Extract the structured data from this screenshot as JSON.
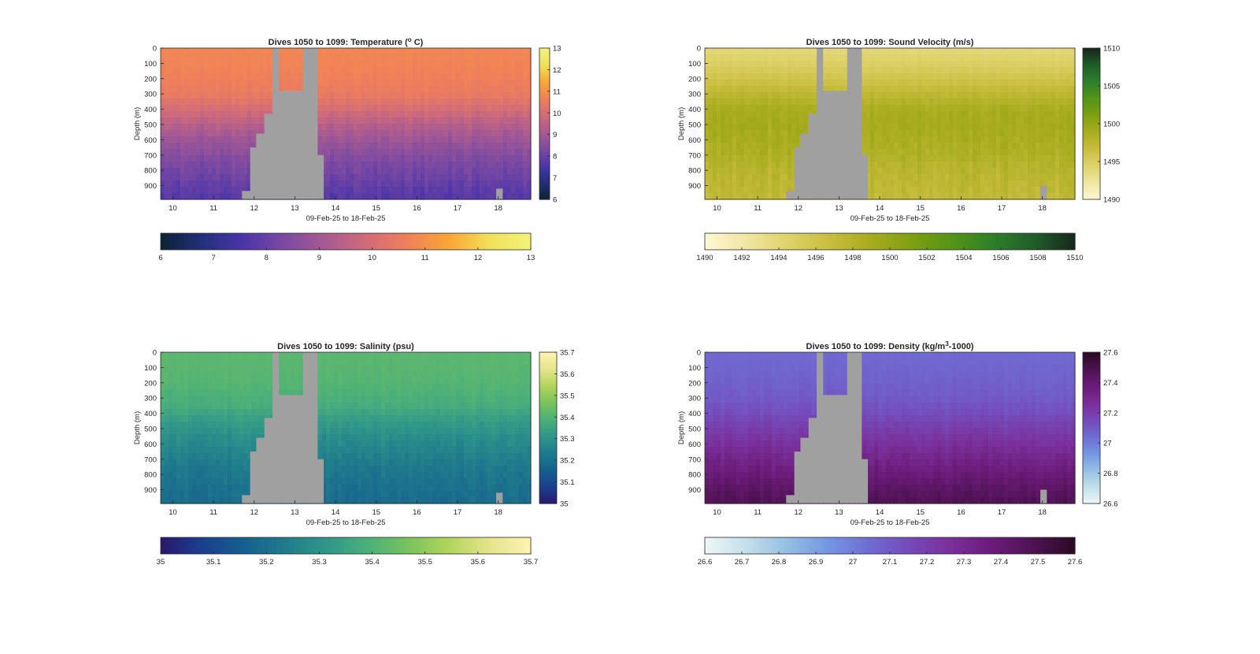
{
  "figure": {
    "background": "#ffffff",
    "mask_color": "#a0a0a0",
    "panel_border": "#262626"
  },
  "chart_data": [
    {
      "id": "temperature",
      "type": "heatmap",
      "title": "Dives 1050 to 1099: Temperature (",
      "title_sup": "o",
      "title_tail": " C)",
      "xlabel": "09-Feb-25 to 18-Feb-25",
      "ylabel": "Depth (m)",
      "x_ticks": [
        "10",
        "11",
        "12",
        "13",
        "14",
        "15",
        "16",
        "17",
        "18"
      ],
      "x_tick_values": [
        10,
        11,
        12,
        13,
        14,
        15,
        16,
        17,
        18
      ],
      "xlim": [
        9.7,
        18.8
      ],
      "y_ticks": [
        "0",
        "100",
        "200",
        "300",
        "400",
        "500",
        "600",
        "700",
        "800",
        "900"
      ],
      "y_tick_values": [
        0,
        100,
        200,
        300,
        400,
        500,
        600,
        700,
        800,
        900
      ],
      "ylim": [
        0,
        990
      ],
      "y_reversed": true,
      "colormap": [
        "#0d2233",
        "#22307a",
        "#4b35a8",
        "#7c4aa2",
        "#a75a92",
        "#d06b7a",
        "#ef805a",
        "#f9a636",
        "#f1e05a",
        "#f2f37c"
      ],
      "clim": [
        6,
        13
      ],
      "profile": [
        [
          0,
          10.8
        ],
        [
          150,
          10.7
        ],
        [
          300,
          10.5
        ],
        [
          400,
          10.0
        ],
        [
          500,
          9.4
        ],
        [
          600,
          8.9
        ],
        [
          700,
          8.5
        ],
        [
          800,
          8.2
        ],
        [
          900,
          7.9
        ],
        [
          990,
          7.7
        ]
      ],
      "vertical_colorbar_ticks": [
        "6",
        "7",
        "8",
        "9",
        "10",
        "11",
        "12",
        "13"
      ],
      "horizontal_colorbar_ticks": [
        "6",
        "7",
        "8",
        "9",
        "10",
        "11",
        "12",
        "13"
      ],
      "gaps": [
        {
          "start": 11.7,
          "end": 11.9,
          "top": 935
        },
        {
          "start": 11.9,
          "end": 12.05,
          "top": 650
        },
        {
          "start": 12.05,
          "end": 12.25,
          "top": 560
        },
        {
          "start": 12.25,
          "end": 12.45,
          "top": 430
        },
        {
          "start": 12.45,
          "end": 12.6,
          "top": 0
        },
        {
          "start": 12.6,
          "end": 12.85,
          "top": 280
        },
        {
          "start": 12.85,
          "end": 13.05,
          "top": 280
        },
        {
          "start": 13.05,
          "end": 13.2,
          "top": 280
        },
        {
          "start": 13.2,
          "end": 13.55,
          "top": 0
        },
        {
          "start": 13.55,
          "end": 13.7,
          "top": 700
        },
        {
          "start": 17.95,
          "end": 18.1,
          "top": 920
        }
      ]
    },
    {
      "id": "sound-velocity",
      "type": "heatmap",
      "title": "Dives 1050 to 1099: Sound Velocity (m/s)",
      "xlabel": "09-Feb-25 to 18-Feb-25",
      "ylabel": "Depth (m)",
      "x_ticks": [
        "10",
        "11",
        "12",
        "13",
        "14",
        "15",
        "16",
        "17",
        "18"
      ],
      "x_tick_values": [
        10,
        11,
        12,
        13,
        14,
        15,
        16,
        17,
        18
      ],
      "xlim": [
        9.7,
        18.8
      ],
      "y_ticks": [
        "0",
        "100",
        "200",
        "300",
        "400",
        "500",
        "600",
        "700",
        "800",
        "900"
      ],
      "y_tick_values": [
        0,
        100,
        200,
        300,
        400,
        500,
        600,
        700,
        800,
        900
      ],
      "ylim": [
        0,
        990
      ],
      "y_reversed": true,
      "colormap": [
        "#fdf7d4",
        "#f0e6a4",
        "#dfd26c",
        "#c9be3f",
        "#a8ac1e",
        "#80a012",
        "#559418",
        "#2f7f2a",
        "#1f5f2a",
        "#17261b"
      ],
      "clim": [
        1490,
        1510
      ],
      "profile": [
        [
          0,
          1493.8
        ],
        [
          100,
          1494.8
        ],
        [
          200,
          1496.0
        ],
        [
          300,
          1497.5
        ],
        [
          400,
          1498.8
        ],
        [
          500,
          1499.0
        ],
        [
          600,
          1498.8
        ],
        [
          700,
          1498.3
        ],
        [
          800,
          1497.8
        ],
        [
          990,
          1497.2
        ]
      ],
      "vertical_colorbar_ticks": [
        "1490",
        "1495",
        "1500",
        "1505",
        "1510"
      ],
      "vertical_colorbar_values": [
        1490,
        1495,
        1500,
        1505,
        1510
      ],
      "horizontal_colorbar_ticks": [
        "1490",
        "1492",
        "1494",
        "1496",
        "1498",
        "1500",
        "1502",
        "1504",
        "1506",
        "1508",
        "1510"
      ],
      "gaps": [
        {
          "start": 11.7,
          "end": 11.9,
          "top": 935
        },
        {
          "start": 11.9,
          "end": 12.05,
          "top": 650
        },
        {
          "start": 12.05,
          "end": 12.25,
          "top": 560
        },
        {
          "start": 12.25,
          "end": 12.45,
          "top": 430
        },
        {
          "start": 12.45,
          "end": 12.6,
          "top": 0
        },
        {
          "start": 12.6,
          "end": 12.85,
          "top": 280
        },
        {
          "start": 12.85,
          "end": 13.05,
          "top": 280
        },
        {
          "start": 13.05,
          "end": 13.2,
          "top": 280
        },
        {
          "start": 13.2,
          "end": 13.55,
          "top": 0
        },
        {
          "start": 13.55,
          "end": 13.7,
          "top": 700
        },
        {
          "start": 17.95,
          "end": 18.1,
          "top": 900
        }
      ]
    },
    {
      "id": "salinity",
      "type": "heatmap",
      "title": "Dives 1050 to 1099: Salinity (psu)",
      "xlabel": "09-Feb-25 to 18-Feb-25",
      "ylabel": "Depth (m)",
      "x_ticks": [
        "10",
        "11",
        "12",
        "13",
        "14",
        "15",
        "16",
        "17",
        "18"
      ],
      "x_tick_values": [
        10,
        11,
        12,
        13,
        14,
        15,
        16,
        17,
        18
      ],
      "xlim": [
        9.7,
        18.8
      ],
      "y_ticks": [
        "0",
        "100",
        "200",
        "300",
        "400",
        "500",
        "600",
        "700",
        "800",
        "900"
      ],
      "y_tick_values": [
        0,
        100,
        200,
        300,
        400,
        500,
        600,
        700,
        800,
        900
      ],
      "ylim": [
        0,
        990
      ],
      "y_reversed": true,
      "colormap": [
        "#2a186c",
        "#1b3f8f",
        "#16608f",
        "#1f7b8c",
        "#2f968a",
        "#4aaf7a",
        "#77c25e",
        "#b1d45a",
        "#e5e48c",
        "#fdf3b0"
      ],
      "clim": [
        35,
        35.7
      ],
      "profile": [
        [
          0,
          35.42
        ],
        [
          200,
          35.41
        ],
        [
          350,
          35.38
        ],
        [
          450,
          35.33
        ],
        [
          550,
          35.29
        ],
        [
          650,
          35.26
        ],
        [
          750,
          35.23
        ],
        [
          850,
          35.21
        ],
        [
          990,
          35.19
        ]
      ],
      "vertical_colorbar_ticks": [
        "35",
        "35.1",
        "35.2",
        "35.3",
        "35.4",
        "35.5",
        "35.6",
        "35.7"
      ],
      "horizontal_colorbar_ticks": [
        "35",
        "35.1",
        "35.2",
        "35.3",
        "35.4",
        "35.5",
        "35.6",
        "35.7"
      ],
      "gaps": [
        {
          "start": 11.7,
          "end": 11.9,
          "top": 935
        },
        {
          "start": 11.9,
          "end": 12.05,
          "top": 650
        },
        {
          "start": 12.05,
          "end": 12.25,
          "top": 560
        },
        {
          "start": 12.25,
          "end": 12.45,
          "top": 430
        },
        {
          "start": 12.45,
          "end": 12.6,
          "top": 0
        },
        {
          "start": 12.6,
          "end": 12.85,
          "top": 280
        },
        {
          "start": 12.85,
          "end": 13.05,
          "top": 280
        },
        {
          "start": 13.05,
          "end": 13.2,
          "top": 280
        },
        {
          "start": 13.2,
          "end": 13.55,
          "top": 0
        },
        {
          "start": 13.55,
          "end": 13.7,
          "top": 700
        },
        {
          "start": 17.95,
          "end": 18.1,
          "top": 920
        }
      ]
    },
    {
      "id": "density",
      "type": "heatmap",
      "title": "Dives 1050 to 1099: Density (kg/m",
      "title_sup": "3",
      "title_tail": "-1000)",
      "xlabel": "09-Feb-25 to 18-Feb-25",
      "ylabel": "Depth (m)",
      "x_ticks": [
        "10",
        "11",
        "12",
        "13",
        "14",
        "15",
        "16",
        "17",
        "18"
      ],
      "x_tick_values": [
        10,
        11,
        12,
        13,
        14,
        15,
        16,
        17,
        18
      ],
      "xlim": [
        9.7,
        18.8
      ],
      "y_ticks": [
        "0",
        "100",
        "200",
        "300",
        "400",
        "500",
        "600",
        "700",
        "800",
        "900"
      ],
      "y_tick_values": [
        0,
        100,
        200,
        300,
        400,
        500,
        600,
        700,
        800,
        900
      ],
      "ylim": [
        0,
        990
      ],
      "y_reversed": true,
      "colormap": [
        "#eef6f7",
        "#c4dfea",
        "#94bfe3",
        "#7496e2",
        "#6f6cd3",
        "#7549b8",
        "#7a2f99",
        "#6b1b78",
        "#4e1352",
        "#2a0a24"
      ],
      "clim": [
        26.6,
        27.6
      ],
      "profile": [
        [
          0,
          27.05
        ],
        [
          200,
          27.08
        ],
        [
          300,
          27.1
        ],
        [
          400,
          27.14
        ],
        [
          500,
          27.2
        ],
        [
          600,
          27.26
        ],
        [
          700,
          27.32
        ],
        [
          800,
          27.38
        ],
        [
          900,
          27.44
        ],
        [
          990,
          27.48
        ]
      ],
      "vertical_colorbar_ticks": [
        "26.6",
        "26.8",
        "27",
        "27.2",
        "27.4",
        "27.6"
      ],
      "vertical_colorbar_values": [
        26.6,
        26.8,
        27.0,
        27.2,
        27.4,
        27.6
      ],
      "horizontal_colorbar_ticks": [
        "26.6",
        "26.7",
        "26.8",
        "26.9",
        "27",
        "27.1",
        "27.2",
        "27.3",
        "27.4",
        "27.5",
        "27.6"
      ],
      "gaps": [
        {
          "start": 11.7,
          "end": 11.9,
          "top": 935
        },
        {
          "start": 11.9,
          "end": 12.05,
          "top": 650
        },
        {
          "start": 12.05,
          "end": 12.25,
          "top": 560
        },
        {
          "start": 12.25,
          "end": 12.45,
          "top": 430
        },
        {
          "start": 12.45,
          "end": 12.6,
          "top": 0
        },
        {
          "start": 12.6,
          "end": 12.85,
          "top": 280
        },
        {
          "start": 12.85,
          "end": 13.05,
          "top": 280
        },
        {
          "start": 13.05,
          "end": 13.2,
          "top": 280
        },
        {
          "start": 13.2,
          "end": 13.55,
          "top": 0
        },
        {
          "start": 13.55,
          "end": 13.7,
          "top": 700
        },
        {
          "start": 17.95,
          "end": 18.1,
          "top": 900
        }
      ]
    }
  ]
}
